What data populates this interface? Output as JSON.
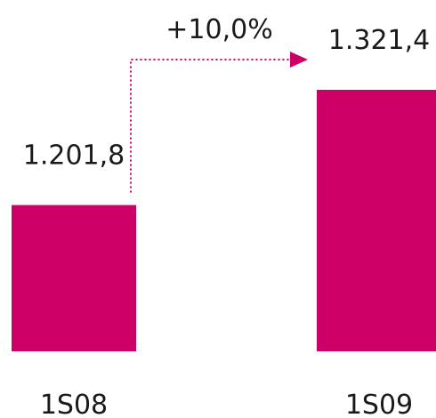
{
  "chart_data": {
    "type": "bar",
    "title": "",
    "xlabel": "",
    "ylabel": "",
    "categories": [
      "1S08",
      "1S09"
    ],
    "values": [
      1201.8,
      1321.4
    ],
    "value_labels": [
      "1.201,8",
      "1.321,4"
    ],
    "change_label": "+10,0%",
    "ylim": [
      1050,
      1350
    ],
    "grid": false,
    "legend": "none",
    "bar_color": "#cc0066",
    "arrow_color": "#cc0066"
  }
}
